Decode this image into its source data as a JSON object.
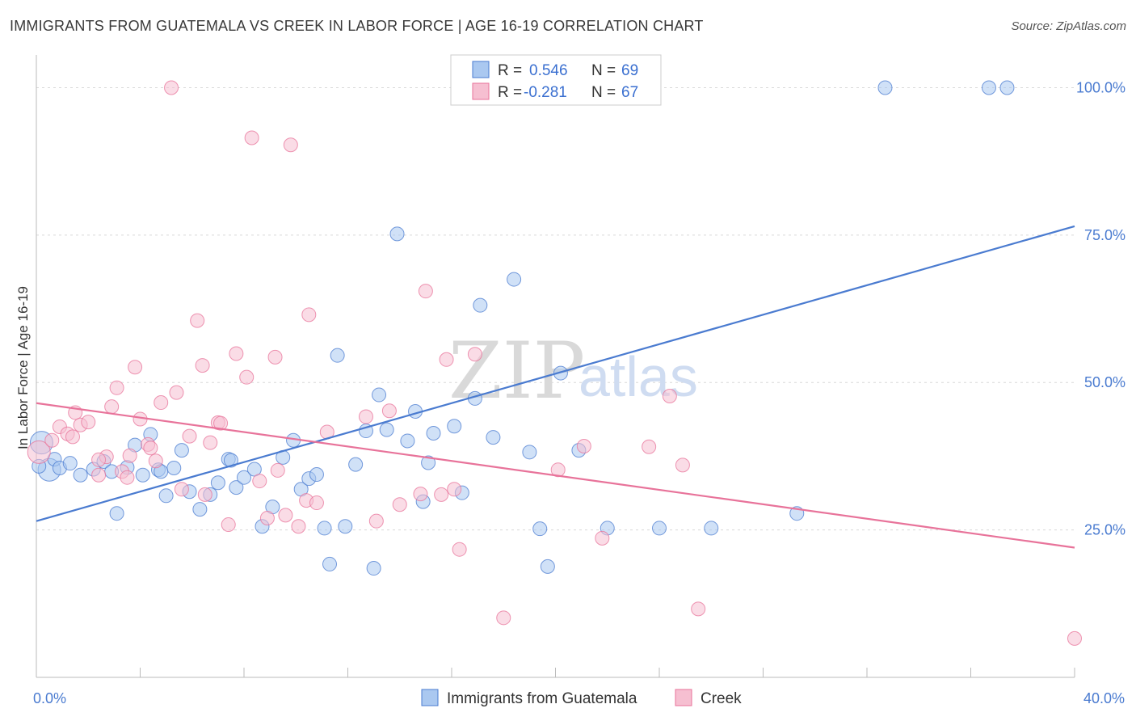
{
  "title": "IMMIGRANTS FROM GUATEMALA VS CREEK IN LABOR FORCE | AGE 16-19 CORRELATION CHART",
  "source": "Source: ZipAtlas.com",
  "watermark": {
    "zip": "ZIP",
    "atlas": "atlas"
  },
  "colors": {
    "blue": "#4a7bd0",
    "blue_fill": "#aac8f0",
    "pink": "#e8739a",
    "pink_fill": "#f6bfd1"
  },
  "chart_data": {
    "type": "scatter",
    "xlabel": "",
    "ylabel": "In Labor Force | Age 16-19",
    "xlim": [
      0,
      40
    ],
    "ylim": [
      0,
      105
    ],
    "x_tick_labels": [
      {
        "value": 0,
        "label": "0.0%"
      },
      {
        "value": 40,
        "label": "40.0%"
      }
    ],
    "y_tick_labels": [
      {
        "value": 25,
        "label": "25.0%"
      },
      {
        "value": 50,
        "label": "50.0%"
      },
      {
        "value": 75,
        "label": "75.0%"
      },
      {
        "value": 100,
        "label": "100.0%"
      }
    ],
    "grid": true,
    "legend_top": [
      {
        "r_label": "R =",
        "r_value": "0.546",
        "n_label": "N =",
        "n_value": "69"
      },
      {
        "r_label": "R =",
        "r_value": "-0.281",
        "n_label": "N =",
        "n_value": "67"
      }
    ],
    "series": [
      {
        "name": "Immigrants from Guatemala",
        "trend": {
          "x": [
            0,
            40
          ],
          "y": [
            26.5,
            76.5
          ]
        },
        "points": [
          [
            0.2,
            39.8
          ],
          [
            0.5,
            35.2
          ],
          [
            0.7,
            37
          ],
          [
            0.9,
            35.5
          ],
          [
            1.3,
            36.3
          ],
          [
            1.7,
            34.3
          ],
          [
            2.2,
            35.3
          ],
          [
            2.6,
            36.6
          ],
          [
            3.1,
            27.8
          ],
          [
            3.5,
            35.6
          ],
          [
            3.8,
            39.4
          ],
          [
            4.1,
            34.3
          ],
          [
            4.4,
            41.2
          ],
          [
            4.7,
            35.2
          ],
          [
            5.0,
            30.8
          ],
          [
            5.3,
            35.5
          ],
          [
            5.6,
            38.5
          ],
          [
            5.9,
            31.5
          ],
          [
            6.3,
            28.5
          ],
          [
            6.7,
            31
          ],
          [
            7.0,
            33
          ],
          [
            7.4,
            37
          ],
          [
            7.7,
            32.2
          ],
          [
            8.0,
            33.9
          ],
          [
            8.4,
            35.3
          ],
          [
            8.7,
            25.6
          ],
          [
            9.1,
            28.9
          ],
          [
            9.5,
            37.3
          ],
          [
            9.9,
            40.2
          ],
          [
            10.2,
            31.9
          ],
          [
            10.5,
            33.7
          ],
          [
            10.8,
            34.4
          ],
          [
            11.1,
            25.3
          ],
          [
            11.3,
            19.2
          ],
          [
            11.6,
            54.6
          ],
          [
            11.9,
            25.6
          ],
          [
            12.3,
            36.1
          ],
          [
            12.7,
            41.8
          ],
          [
            13.0,
            18.5
          ],
          [
            13.2,
            47.9
          ],
          [
            13.5,
            42
          ],
          [
            13.9,
            75.2
          ],
          [
            14.3,
            40.1
          ],
          [
            14.6,
            45.1
          ],
          [
            14.9,
            29.8
          ],
          [
            15.1,
            36.4
          ],
          [
            15.3,
            41.4
          ],
          [
            16.1,
            42.6
          ],
          [
            16.4,
            31.3
          ],
          [
            16.9,
            47.3
          ],
          [
            17.1,
            63.1
          ],
          [
            17.6,
            40.7
          ],
          [
            18.4,
            67.5
          ],
          [
            19.0,
            38.2
          ],
          [
            19.4,
            25.2
          ],
          [
            19.7,
            18.8
          ],
          [
            20.2,
            51.6
          ],
          [
            20.9,
            38.5
          ],
          [
            22.0,
            25.3
          ],
          [
            24.0,
            25.3
          ],
          [
            26.0,
            25.3
          ],
          [
            29.3,
            27.8
          ],
          [
            32.7,
            100
          ],
          [
            36.7,
            100
          ],
          [
            37.4,
            100
          ],
          [
            4.8,
            34.9
          ],
          [
            7.5,
            36.8
          ],
          [
            2.9,
            34.9
          ],
          [
            0.1,
            35.8
          ]
        ]
      },
      {
        "name": "Creek",
        "trend": {
          "x": [
            0,
            40
          ],
          "y": [
            46.5,
            22
          ]
        },
        "points": [
          [
            0.1,
            38.2
          ],
          [
            0.6,
            40.2
          ],
          [
            0.9,
            42.5
          ],
          [
            1.2,
            41.3
          ],
          [
            1.5,
            44.9
          ],
          [
            1.7,
            42.8
          ],
          [
            2.0,
            43.3
          ],
          [
            2.4,
            34.3
          ],
          [
            2.7,
            37.4
          ],
          [
            2.9,
            45.9
          ],
          [
            3.1,
            49.1
          ],
          [
            3.3,
            34.9
          ],
          [
            3.5,
            33.9
          ],
          [
            3.8,
            52.6
          ],
          [
            4.0,
            43.8
          ],
          [
            4.3,
            39.5
          ],
          [
            4.6,
            36.7
          ],
          [
            4.8,
            46.6
          ],
          [
            5.2,
            100
          ],
          [
            5.4,
            48.3
          ],
          [
            5.6,
            31.9
          ],
          [
            5.9,
            40.9
          ],
          [
            6.2,
            60.5
          ],
          [
            6.4,
            52.9
          ],
          [
            6.7,
            39.8
          ],
          [
            7.0,
            43.2
          ],
          [
            7.4,
            25.9
          ],
          [
            7.7,
            54.9
          ],
          [
            8.1,
            50.9
          ],
          [
            8.3,
            91.5
          ],
          [
            8.6,
            33.3
          ],
          [
            8.9,
            27
          ],
          [
            9.2,
            54.3
          ],
          [
            9.6,
            27.5
          ],
          [
            9.8,
            90.3
          ],
          [
            10.1,
            25.6
          ],
          [
            10.4,
            30
          ],
          [
            10.5,
            61.5
          ],
          [
            10.8,
            29.6
          ],
          [
            11.2,
            41.6
          ],
          [
            12.7,
            44.2
          ],
          [
            13.1,
            26.5
          ],
          [
            13.6,
            45.2
          ],
          [
            14.0,
            29.3
          ],
          [
            15.0,
            65.5
          ],
          [
            15.6,
            31
          ],
          [
            15.8,
            53.9
          ],
          [
            16.1,
            31.9
          ],
          [
            16.3,
            21.7
          ],
          [
            16.9,
            54.8
          ],
          [
            18.0,
            10.1
          ],
          [
            20.1,
            35.2
          ],
          [
            21.1,
            39.2
          ],
          [
            21.8,
            23.6
          ],
          [
            23.6,
            39.1
          ],
          [
            24.4,
            47.7
          ],
          [
            24.9,
            36
          ],
          [
            25.5,
            11.6
          ],
          [
            40.0,
            6.6
          ],
          [
            3.6,
            37.6
          ],
          [
            6.5,
            31
          ],
          [
            1.4,
            40.8
          ],
          [
            7.1,
            43.1
          ],
          [
            14.8,
            31.1
          ],
          [
            9.3,
            35.1
          ],
          [
            2.4,
            36.9
          ],
          [
            4.4,
            38.9
          ]
        ]
      }
    ]
  }
}
